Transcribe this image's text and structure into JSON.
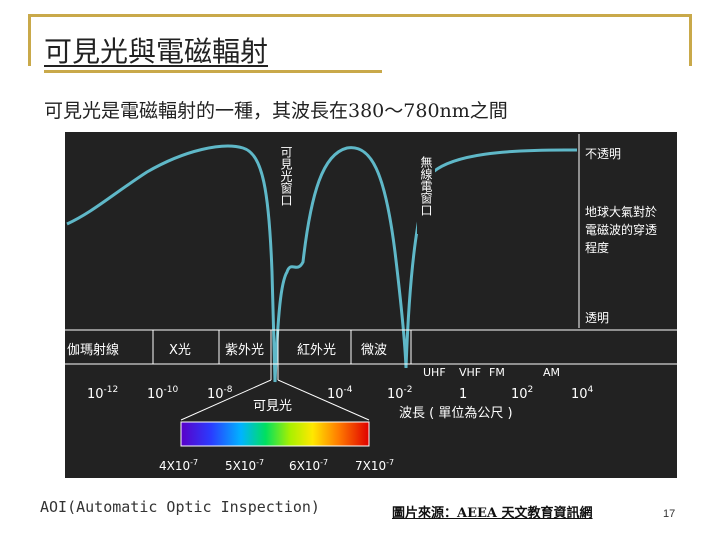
{
  "slide": {
    "title": "可見光與電磁輻射",
    "subtitle": "可見光是電磁輻射的一種，其波長在380～780nm之間",
    "footer_left": "AOI(Automatic Optic Inspection)",
    "footer_right": "圖片來源：AEEA 天文教育資訊網",
    "page_number": "17"
  },
  "figure": {
    "opacity_labels": {
      "opaque": "不透明",
      "note_line1": "地球大氣對於",
      "note_line2": "電磁波的穿透",
      "note_line3": "程度",
      "transparent": "透明"
    },
    "window_labels": {
      "visible_window": "可見光窗口",
      "radio_window": "無線電窗口"
    },
    "bands": [
      "伽瑪射線",
      "X光",
      "紫外光",
      "紅外光",
      "微波"
    ],
    "radio_bands": [
      "UHF",
      "VHF",
      "FM",
      "AM"
    ],
    "exponent_ticks": [
      {
        "base": "10",
        "exp": "-12"
      },
      {
        "base": "10",
        "exp": "-10"
      },
      {
        "base": "10",
        "exp": "-8"
      },
      {
        "base": "10",
        "exp": "-4"
      },
      {
        "base": "10",
        "exp": "-2"
      },
      {
        "base": "1",
        "exp": ""
      },
      {
        "base": "10",
        "exp": "2"
      },
      {
        "base": "10",
        "exp": "4"
      }
    ],
    "visible_label": "可見光",
    "axis_label": "波長 ( 單位為公尺 )",
    "spectrum_ticks": [
      {
        "base": "4X10",
        "exp": "-7"
      },
      {
        "base": "5X10",
        "exp": "-7"
      },
      {
        "base": "6X10",
        "exp": "-7"
      },
      {
        "base": "7X10",
        "exp": "-7"
      }
    ]
  }
}
